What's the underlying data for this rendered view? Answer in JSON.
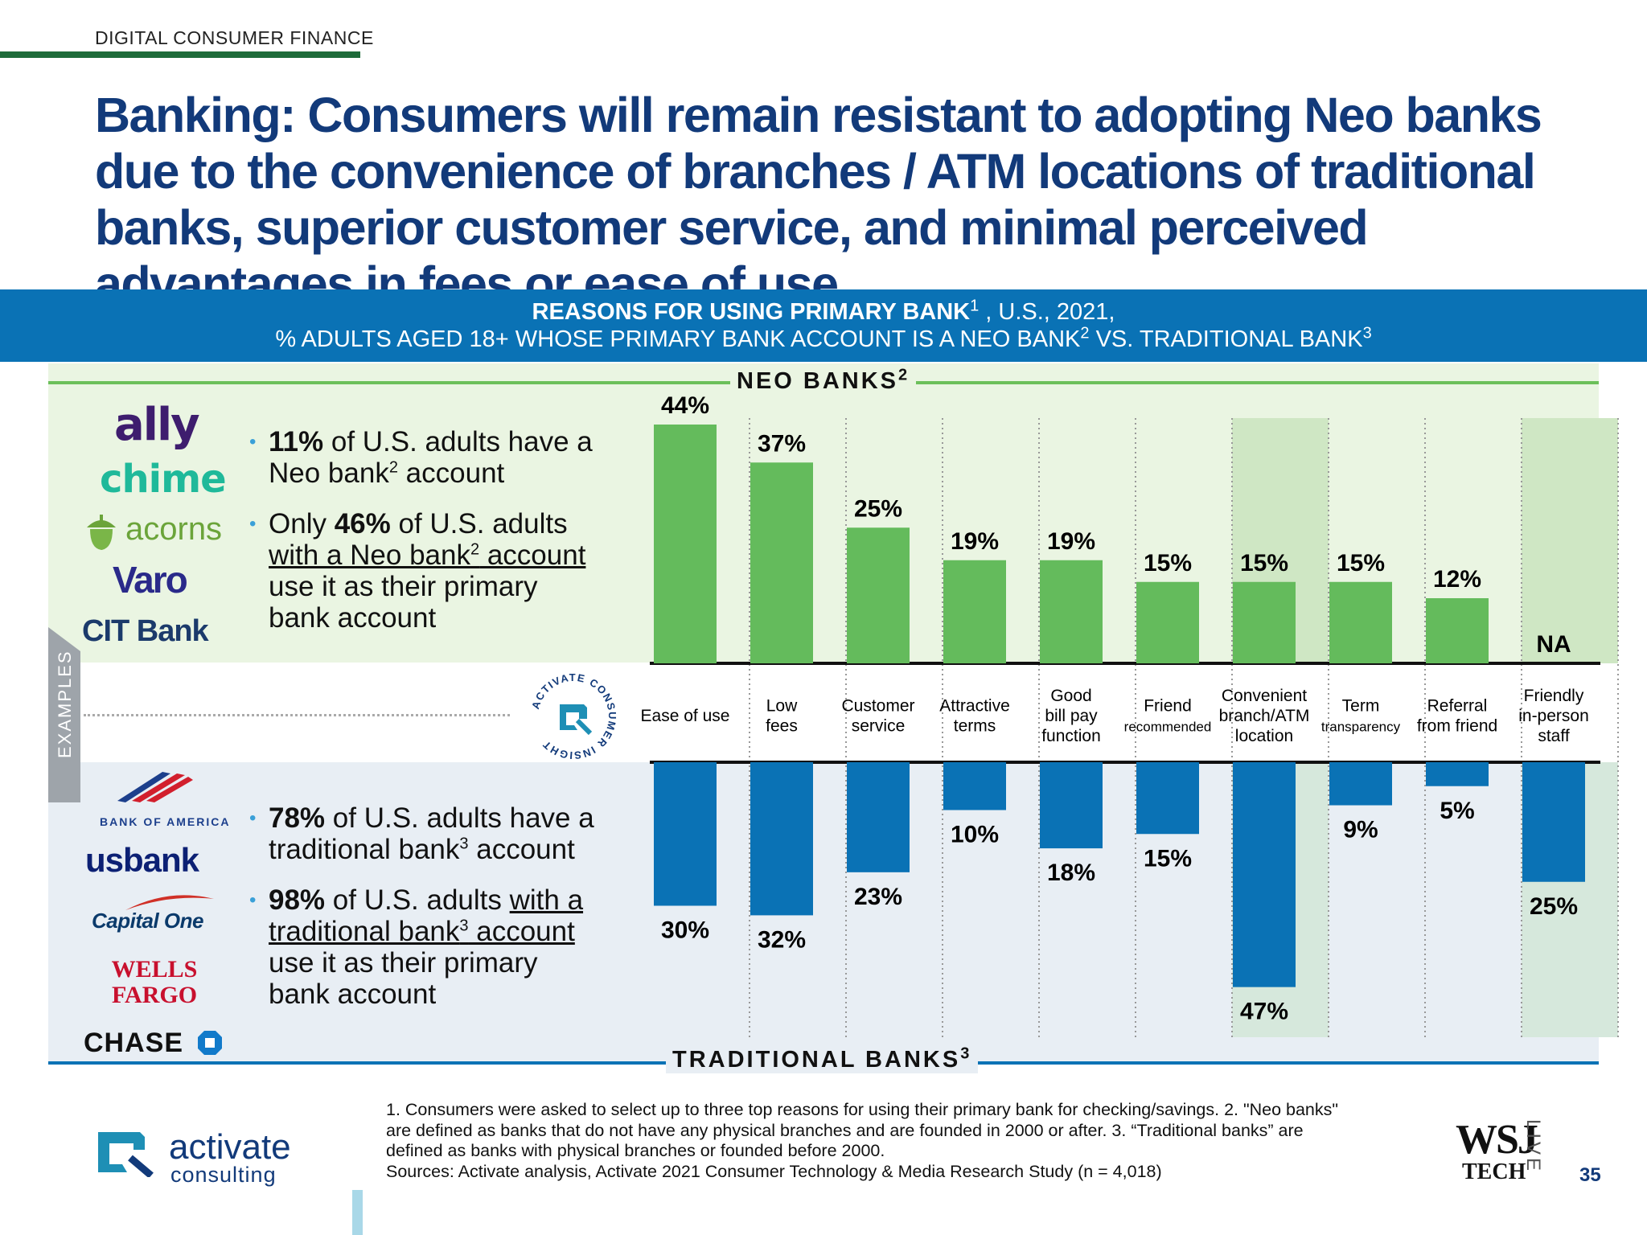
{
  "header": {
    "section_label": "DIGITAL CONSUMER FINANCE",
    "headline": "Banking: Consumers will remain resistant to adopting Neo banks due to the convenience of branches / ATM locations of traditional banks, superior customer service, and minimal perceived advantages in fees or ease of use"
  },
  "banner": {
    "line1_main": "REASONS FOR USING PRIMARY BANK",
    "line1_sup": "1",
    "line1_rest": " , U.S., 2021,",
    "line2": "% ADULTS AGED 18+ WHOSE PRIMARY BANK ACCOUNT IS A NEO BANK",
    "line2_sup1": "2",
    "line2_mid": " VS. TRADITIONAL BANK",
    "line2_sup2": "3"
  },
  "zones": {
    "neo_label": "NEO BANKS",
    "neo_sup": "2",
    "trad_label": "TRADITIONAL BANKS",
    "trad_sup": "3",
    "examples_label": "EXAMPLES"
  },
  "neo_logos": [
    "ally",
    "chime",
    "acorns",
    "Varo",
    "CIT Bank"
  ],
  "trad_logos": [
    "BANK OF AMERICA",
    "usbank",
    "Capital One",
    "WELLS FARGO",
    "CHASE"
  ],
  "insight_badge": {
    "ring_text": "ACTIVATE CONSUMER INSIGHT"
  },
  "neo_bullets": {
    "b1_bold": "11%",
    "b1_rest": " of U.S. adults have a",
    "b1_line2": "Neo bank",
    "b1_sup": "2",
    "b1_end": " account",
    "b2_pre": "Only ",
    "b2_bold": "46%",
    "b2_rest": " of U.S. adults",
    "b2_line2": "with a Neo bank",
    "b2_sup": "2",
    "b2_line2_end": " account",
    "b2_line3": "use it as their primary",
    "b2_line4": "bank account"
  },
  "trad_bullets": {
    "b1_bold": "78%",
    "b1_rest": " of U.S. adults have a",
    "b1_line2": "traditional bank",
    "b1_sup": "3",
    "b1_end": " account",
    "b2_bold": "98%",
    "b2_rest": " of U.S. adults ",
    "b2_u1": "with a",
    "b2_line2": "traditional bank",
    "b2_sup": "3",
    "b2_line2_end": " account",
    "b2_line3": "use it as their primary",
    "b2_line4": "bank account"
  },
  "chart_data": {
    "type": "bar",
    "categories": [
      "Ease of use",
      "Low fees",
      "Customer service",
      "Attractive terms",
      "Good bill pay function",
      "Friend recommended",
      "Convenient branch/ATM location",
      "Term transparency",
      "Referral from friend",
      "Friendly in-person staff"
    ],
    "category_lines": [
      [
        "Ease of use"
      ],
      [
        "Low",
        "fees"
      ],
      [
        "Customer",
        "service"
      ],
      [
        "Attractive",
        "terms"
      ],
      [
        "Good",
        "bill pay",
        "function"
      ],
      [
        "Friend",
        "recommended"
      ],
      [
        "Convenient",
        "branch/ATM",
        "location"
      ],
      [
        "Term",
        "transparency"
      ],
      [
        "Referral",
        "from friend"
      ],
      [
        "Friendly",
        "in-person",
        "staff"
      ]
    ],
    "highlighted": [
      "Convenient branch/ATM location",
      "Friendly in-person staff"
    ],
    "series": [
      {
        "name": "NEO BANKS",
        "values": [
          44,
          37,
          25,
          19,
          19,
          15,
          15,
          15,
          12,
          null
        ],
        "labels": [
          "44%",
          "37%",
          "25%",
          "19%",
          "19%",
          "15%",
          "15%",
          "15%",
          "12%",
          "NA"
        ],
        "color": "#64bb5c"
      },
      {
        "name": "TRADITIONAL BANKS",
        "values": [
          30,
          32,
          23,
          10,
          18,
          15,
          47,
          9,
          5,
          25
        ],
        "labels": [
          "30%",
          "32%",
          "23%",
          "10%",
          "18%",
          "15%",
          "47%",
          "9%",
          "5%",
          "25%"
        ],
        "color": "#0a72b5"
      }
    ],
    "colors": {
      "highlight_neo": "#cfe7c4",
      "highlight_trad": "#d6e8dc"
    }
  },
  "footnote": {
    "line1": "1. Consumers were asked to select up to three top reasons for using their primary bank for checking/savings.  2. \"Neo banks\"",
    "line2": "are defined as banks that do not have any physical branches and are founded in 2000 or after.  3. “Traditional banks” are",
    "line3": "defined as banks with physical branches or founded before 2000.",
    "line4": "Sources: Activate analysis, Activate 2021 Consumer Technology & Media Research Study (n = 4,018)"
  },
  "footer": {
    "brand_name": "activate",
    "brand_sub": "consulting",
    "partner_main": "WSJ",
    "partner_tech": "TECH",
    "partner_live": "LIVE",
    "page_number": "35"
  }
}
